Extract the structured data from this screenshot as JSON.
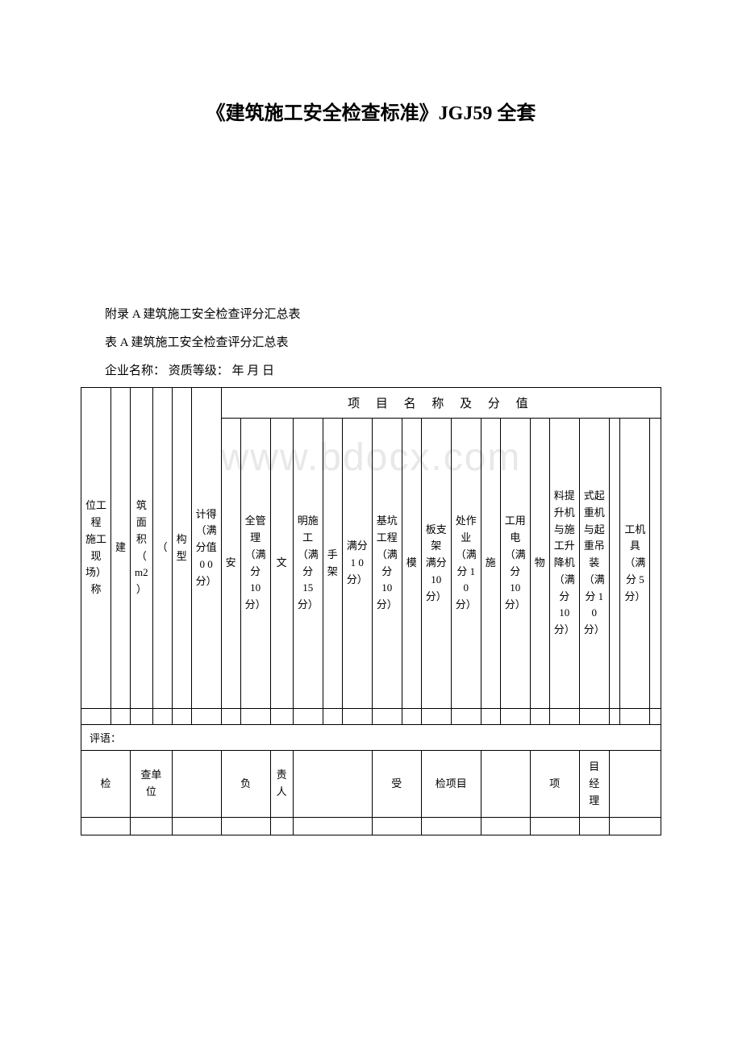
{
  "title": "《建筑施工安全检查标准》JGJ59 全套",
  "subtitle1": "附录 A 建筑施工安全检查评分汇总表",
  "subtitle2": "表 A 建筑施工安全检查评分汇总表",
  "subtitle3": "企业名称：  资质等级：  年 月 日",
  "watermark": "www.bdocx.com",
  "header_span": "项 目 名 称 及 分 值",
  "columns": {
    "col1": "位工程  施工现场）  称",
    "col2_a": "建",
    "col2_b": "筑面积（ m2 ）",
    "col3_a": "（",
    "col3_b": "构  型",
    "col4": "计得  （满  分值  0 0 分）",
    "col5_a": "安",
    "col5_b": "全管理（满分 10 分）",
    "col6_a": "文",
    "col6_b": "明施工（满分 15 分）",
    "col7_a": "手架",
    "col7_b": "  满分 1 0 分）",
    "col8": "基坑工程（满分 10 分）",
    "col9_a": "模",
    "col9_b": "板支架  满分 10 分）",
    "col10_a": "处作业（满分 1 0 分）",
    "col11_a": "施",
    "col11_b": "工用电（满分 10 分）",
    "col12_a": "物",
    "col12_b": "料提升机与施工升降机（满分 10 分）",
    "col13": "式起重机与起重吊装（满分 1 0 分）",
    "col14": "工机具（满分 5 分）"
  },
  "comment_label": "评语：",
  "bottom": {
    "b1_a": "检",
    "b1_b": "查单位",
    "b2_a": "负",
    "b2_b": "责人",
    "b3_a": "受",
    "b3_b": "检项目",
    "b4_a": "项",
    "b4_b": "目经理"
  },
  "colors": {
    "background": "#ffffff",
    "text": "#000000",
    "border": "#000000",
    "watermark": "#e8e8e8"
  },
  "fonts": {
    "title_size": 24,
    "body_size": 15,
    "table_size": 13
  }
}
